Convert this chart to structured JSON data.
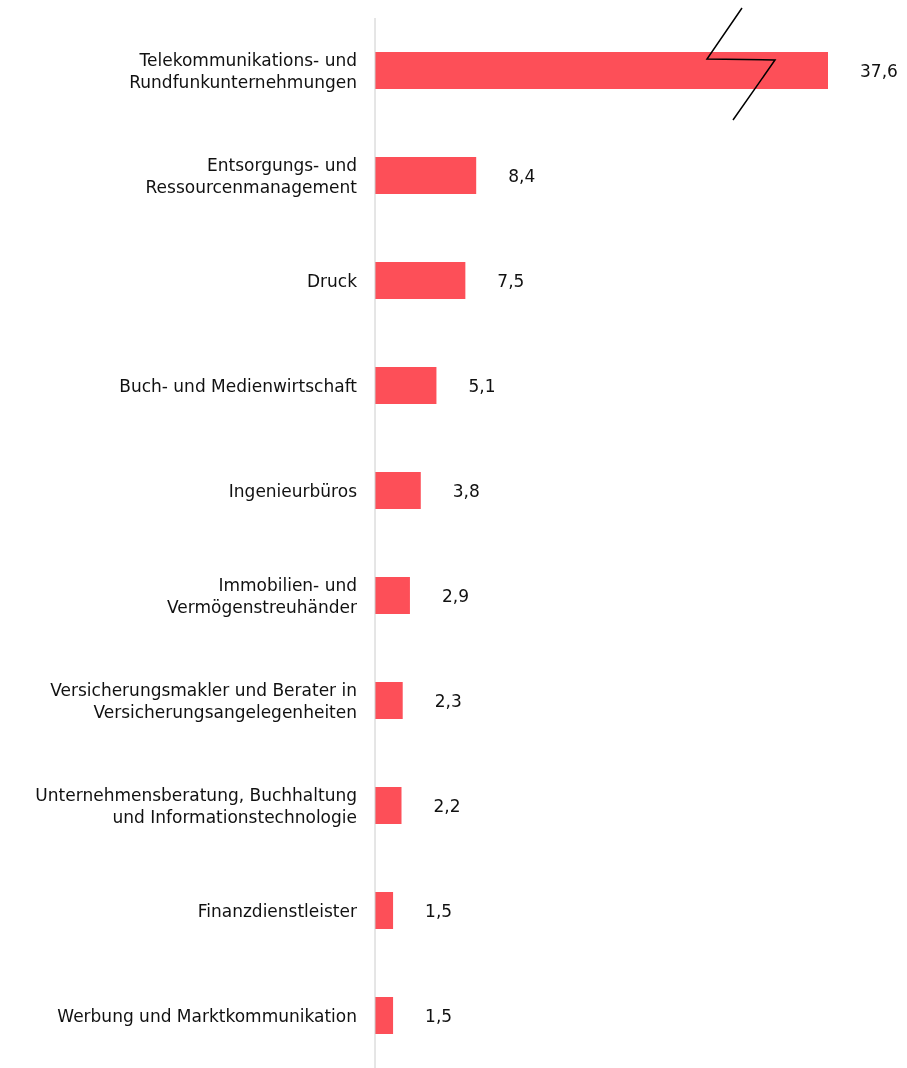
{
  "chart_data": {
    "type": "bar",
    "orientation": "horizontal",
    "categories": [
      "Telekommunikations- und Rundfunkunternehmungen",
      "Entsorgungs- und Ressourcenmanagement",
      "Druck",
      "Buch- und Medienwirtschaft",
      "Ingenieurbüros",
      "Immobilien- und Vermögenstreuhänder",
      "Versicherungsmakler und Berater in Versicherungsangelegenheiten",
      "Unternehmensberatung, Buchhaltung und Informationstechnologie",
      "Finanzdienstleister",
      "Werbung und Marktkommunikation"
    ],
    "values": [
      37.6,
      8.4,
      7.5,
      5.1,
      3.8,
      2.9,
      2.3,
      2.2,
      1.5,
      1.5
    ],
    "value_labels": [
      "37,6",
      "8,4",
      "7,5",
      "5,1",
      "3,8",
      "2,9",
      "2,3",
      "2,2",
      "1,5",
      "1,5"
    ],
    "color": "#fd4f58",
    "grid": false,
    "legend": false
  }
}
